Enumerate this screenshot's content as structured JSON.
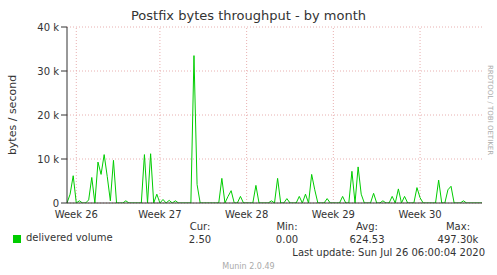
{
  "chart_data": {
    "type": "line",
    "title": "Postfix bytes throughput - by month",
    "y_label": "bytes / second",
    "side_text": "RRDTOOL / TOBI OETIKER",
    "categories": [
      null,
      null,
      null,
      "Week 26",
      null,
      null,
      null,
      null,
      null,
      null,
      null,
      null,
      null,
      null,
      null,
      null,
      null,
      null,
      null,
      null,
      null,
      null,
      null,
      null,
      null,
      null,
      null,
      null,
      null,
      null,
      "Week 27",
      null,
      null,
      null,
      null,
      null,
      null,
      null,
      null,
      null,
      null,
      null,
      null,
      null,
      null,
      null,
      null,
      null,
      null,
      null,
      null,
      null,
      null,
      null,
      null,
      null,
      null,
      null,
      "Week 28",
      null,
      null,
      null,
      null,
      null,
      null,
      null,
      null,
      null,
      null,
      null,
      null,
      null,
      null,
      null,
      null,
      null,
      null,
      null,
      null,
      null,
      null,
      null,
      null,
      null,
      null,
      null,
      "Week 29",
      null,
      null,
      null,
      null,
      null,
      null,
      null,
      null,
      null,
      null,
      null,
      null,
      null,
      null,
      null,
      null,
      null,
      null,
      null,
      null,
      null,
      null,
      null,
      null,
      null,
      null,
      null,
      "Week 30",
      null,
      null,
      null,
      null,
      null,
      null,
      null,
      null,
      null,
      null,
      null,
      null,
      null,
      null,
      null,
      null,
      null,
      null,
      null,
      null
    ],
    "series": [
      {
        "name": "delivered volume",
        "color": "#00cc00",
        "values": [
          0,
          2000,
          6200,
          0,
          500,
          0,
          0,
          700,
          5800,
          0,
          9300,
          6500,
          11000,
          6000,
          500,
          9700,
          0,
          0,
          0,
          500,
          0,
          0,
          0,
          0,
          0,
          11000,
          0,
          11200,
          0,
          2000,
          0,
          800,
          0,
          600,
          0,
          500,
          0,
          0,
          0,
          0,
          0,
          33500,
          4200,
          0,
          0,
          0,
          0,
          0,
          0,
          0,
          5600,
          0,
          1500,
          2800,
          0,
          0,
          1500,
          0,
          0,
          0,
          0,
          4000,
          0,
          0,
          0,
          0,
          500,
          0,
          5600,
          0,
          0,
          1000,
          0,
          0,
          0,
          1500,
          0,
          2000,
          0,
          6500,
          3000,
          0,
          0,
          0,
          1000,
          0,
          0,
          0,
          0,
          1500,
          0,
          0,
          7200,
          0,
          8200,
          2000,
          0,
          0,
          0,
          2200,
          0,
          0,
          500,
          0,
          0,
          1500,
          0,
          3200,
          0,
          1500,
          0,
          0,
          0,
          3500,
          1200,
          0,
          0,
          0,
          0,
          0,
          5200,
          0,
          0,
          3000,
          3800,
          0,
          0,
          0,
          500,
          0,
          0,
          0,
          0,
          0,
          0
        ]
      }
    ],
    "ylim": [
      0,
      40000
    ],
    "yticks": [
      0,
      {
        "value": 10000,
        "label": "10 k"
      },
      {
        "value": 20000,
        "label": "20 k"
      },
      {
        "value": 30000,
        "label": "30 k"
      },
      {
        "value": 40000,
        "label": "40 k"
      }
    ],
    "grid": true,
    "stats": [
      {
        "label": "Cur:",
        "value": "2.50"
      },
      {
        "label": "Min:",
        "value": "0.00"
      },
      {
        "label": "Avg:",
        "value": "624.53"
      },
      {
        "label": "Max:",
        "value": "497.30k"
      }
    ],
    "last_update": "Last update: Sun Jul 26 06:00:04 2020",
    "footer": "Munin 2.0.49"
  }
}
